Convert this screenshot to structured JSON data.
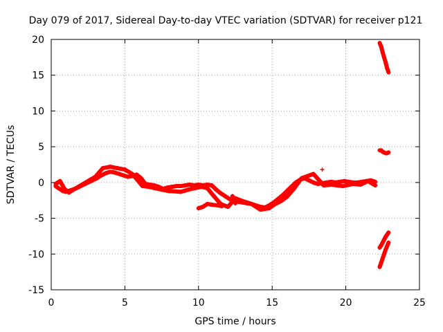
{
  "chart_data": {
    "type": "scatter",
    "title": "Day 079 of 2017, Sidereal Day-to-day VTEC variation (SDTVAR) for receiver p121",
    "xlabel": "GPS time / hours",
    "ylabel": "SDTVAR / TECUs",
    "xlim": [
      0,
      25
    ],
    "ylim": [
      -15,
      20
    ],
    "xticks": [
      "0",
      "5",
      "10",
      "15",
      "20",
      "25"
    ],
    "yticks": [
      "-15",
      "-10",
      "-5",
      "0",
      "5",
      "10",
      "15",
      "20"
    ],
    "grid": true,
    "marker": "+",
    "color": "#ff0000",
    "series": [
      {
        "segments": [
          {
            "x": [
              0.3,
              0.5,
              0.8,
              1.0,
              1.3,
              1.6,
              1.9,
              2.2,
              2.5,
              2.8,
              3.1,
              3.4,
              3.7,
              4.0,
              4.3,
              4.6,
              4.9,
              5.2,
              5.5,
              5.8,
              6.1,
              6.4,
              6.7,
              7.0,
              7.3,
              7.6,
              7.9,
              8.2,
              8.5,
              8.8,
              9.1,
              9.4,
              9.7,
              10.0,
              10.3,
              10.6,
              10.9,
              11.2,
              11.5,
              11.8,
              12.1,
              12.4,
              12.7,
              13.0,
              13.3,
              13.6,
              13.9,
              14.2,
              14.5,
              14.8,
              15.1,
              15.4,
              15.7,
              16.0,
              16.3,
              16.6,
              16.9,
              17.2,
              17.5,
              17.8,
              18.1,
              18.4,
              18.7,
              19.0,
              19.3,
              19.6,
              19.9,
              20.2,
              20.5,
              20.8,
              21.1,
              21.4,
              21.7,
              22.0
            ],
            "y": [
              -0.5,
              -0.8,
              -1.2,
              -1.3,
              -1.1,
              -0.9,
              -0.6,
              -0.3,
              0.0,
              0.3,
              0.6,
              1.0,
              1.3,
              1.5,
              1.4,
              1.2,
              1.0,
              0.8,
              0.9,
              1.1,
              0.6,
              -0.2,
              -0.3,
              -0.4,
              -0.6,
              -0.9,
              -0.7,
              -0.6,
              -0.5,
              -0.5,
              -0.4,
              -0.3,
              -0.4,
              -0.3,
              -0.4,
              -0.3,
              -0.4,
              -1.0,
              -1.5,
              -1.9,
              -2.3,
              -2.6,
              -2.7,
              -2.8,
              -2.9,
              -3.0,
              -3.2,
              -3.4,
              -3.5,
              -3.2,
              -2.8,
              -2.3,
              -1.8,
              -1.2,
              -0.6,
              0.0,
              0.4,
              0.6,
              0.3,
              0.0,
              -0.2,
              -0.1,
              0.0,
              0.1,
              0.0,
              0.1,
              0.2,
              0.1,
              0.0,
              0.0,
              0.1,
              0.2,
              0.3,
              0.1
            ]
          },
          {
            "x": [
              0.3,
              0.6,
              0.9,
              1.2,
              1.5,
              2.5,
              3.0,
              3.5,
              4.0,
              4.5,
              5.0,
              5.5,
              6.2,
              6.6,
              7.5,
              8.0,
              8.8,
              9.5,
              10.2,
              10.6,
              11.0,
              11.5,
              12.0,
              12.5,
              13.0,
              13.6,
              14.2,
              14.8,
              15.2,
              15.6,
              16.0,
              16.5,
              17.0,
              17.4,
              17.8,
              18.5,
              19.0,
              19.8,
              20.5,
              21.0,
              21.5,
              22.0
            ],
            "y": [
              -0.2,
              0.2,
              -0.9,
              -1.4,
              -1.0,
              0.2,
              0.8,
              2.0,
              2.2,
              2.0,
              1.8,
              1.2,
              -0.5,
              -0.6,
              -1.0,
              -1.2,
              -1.3,
              -0.9,
              -0.6,
              -0.8,
              -1.8,
              -3.0,
              -3.4,
              -2.2,
              -2.6,
              -3.0,
              -3.8,
              -3.6,
              -3.0,
              -2.6,
              -2.0,
              -0.8,
              0.6,
              0.9,
              1.2,
              -0.4,
              -0.3,
              -0.5,
              -0.2,
              -0.3,
              0.2,
              -0.4
            ]
          },
          {
            "x": [
              10.0,
              10.3,
              10.6,
              10.9,
              11.3,
              11.6
            ],
            "y": [
              -3.6,
              -3.4,
              -3.0,
              -3.1,
              -3.2,
              -3.3
            ]
          },
          {
            "x": [
              12.3,
              12.5
            ],
            "y": [
              -1.9,
              -2.9
            ]
          },
          {
            "x": [
              18.4
            ],
            "y": [
              1.8
            ]
          },
          {
            "x": [
              22.3,
              22.4,
              22.5,
              22.6,
              22.7,
              22.8,
              22.9
            ],
            "y": [
              19.5,
              19.0,
              18.2,
              17.5,
              16.8,
              16.0,
              15.4
            ]
          },
          {
            "x": [
              22.3,
              22.4,
              22.5,
              22.6,
              22.7,
              22.8,
              22.9
            ],
            "y": [
              4.5,
              4.5,
              4.3,
              4.2,
              4.1,
              4.1,
              4.2
            ]
          },
          {
            "x": [
              22.3,
              22.4,
              22.5,
              22.6,
              22.7,
              22.8,
              22.9
            ],
            "y": [
              -9.1,
              -8.8,
              -8.4,
              -8.0,
              -7.6,
              -7.3,
              -7.0
            ]
          },
          {
            "x": [
              22.3,
              22.4,
              22.5,
              22.6,
              22.7,
              22.8,
              22.9
            ],
            "y": [
              -11.8,
              -11.2,
              -10.6,
              -10.0,
              -9.4,
              -8.9,
              -8.4
            ]
          }
        ]
      }
    ]
  }
}
